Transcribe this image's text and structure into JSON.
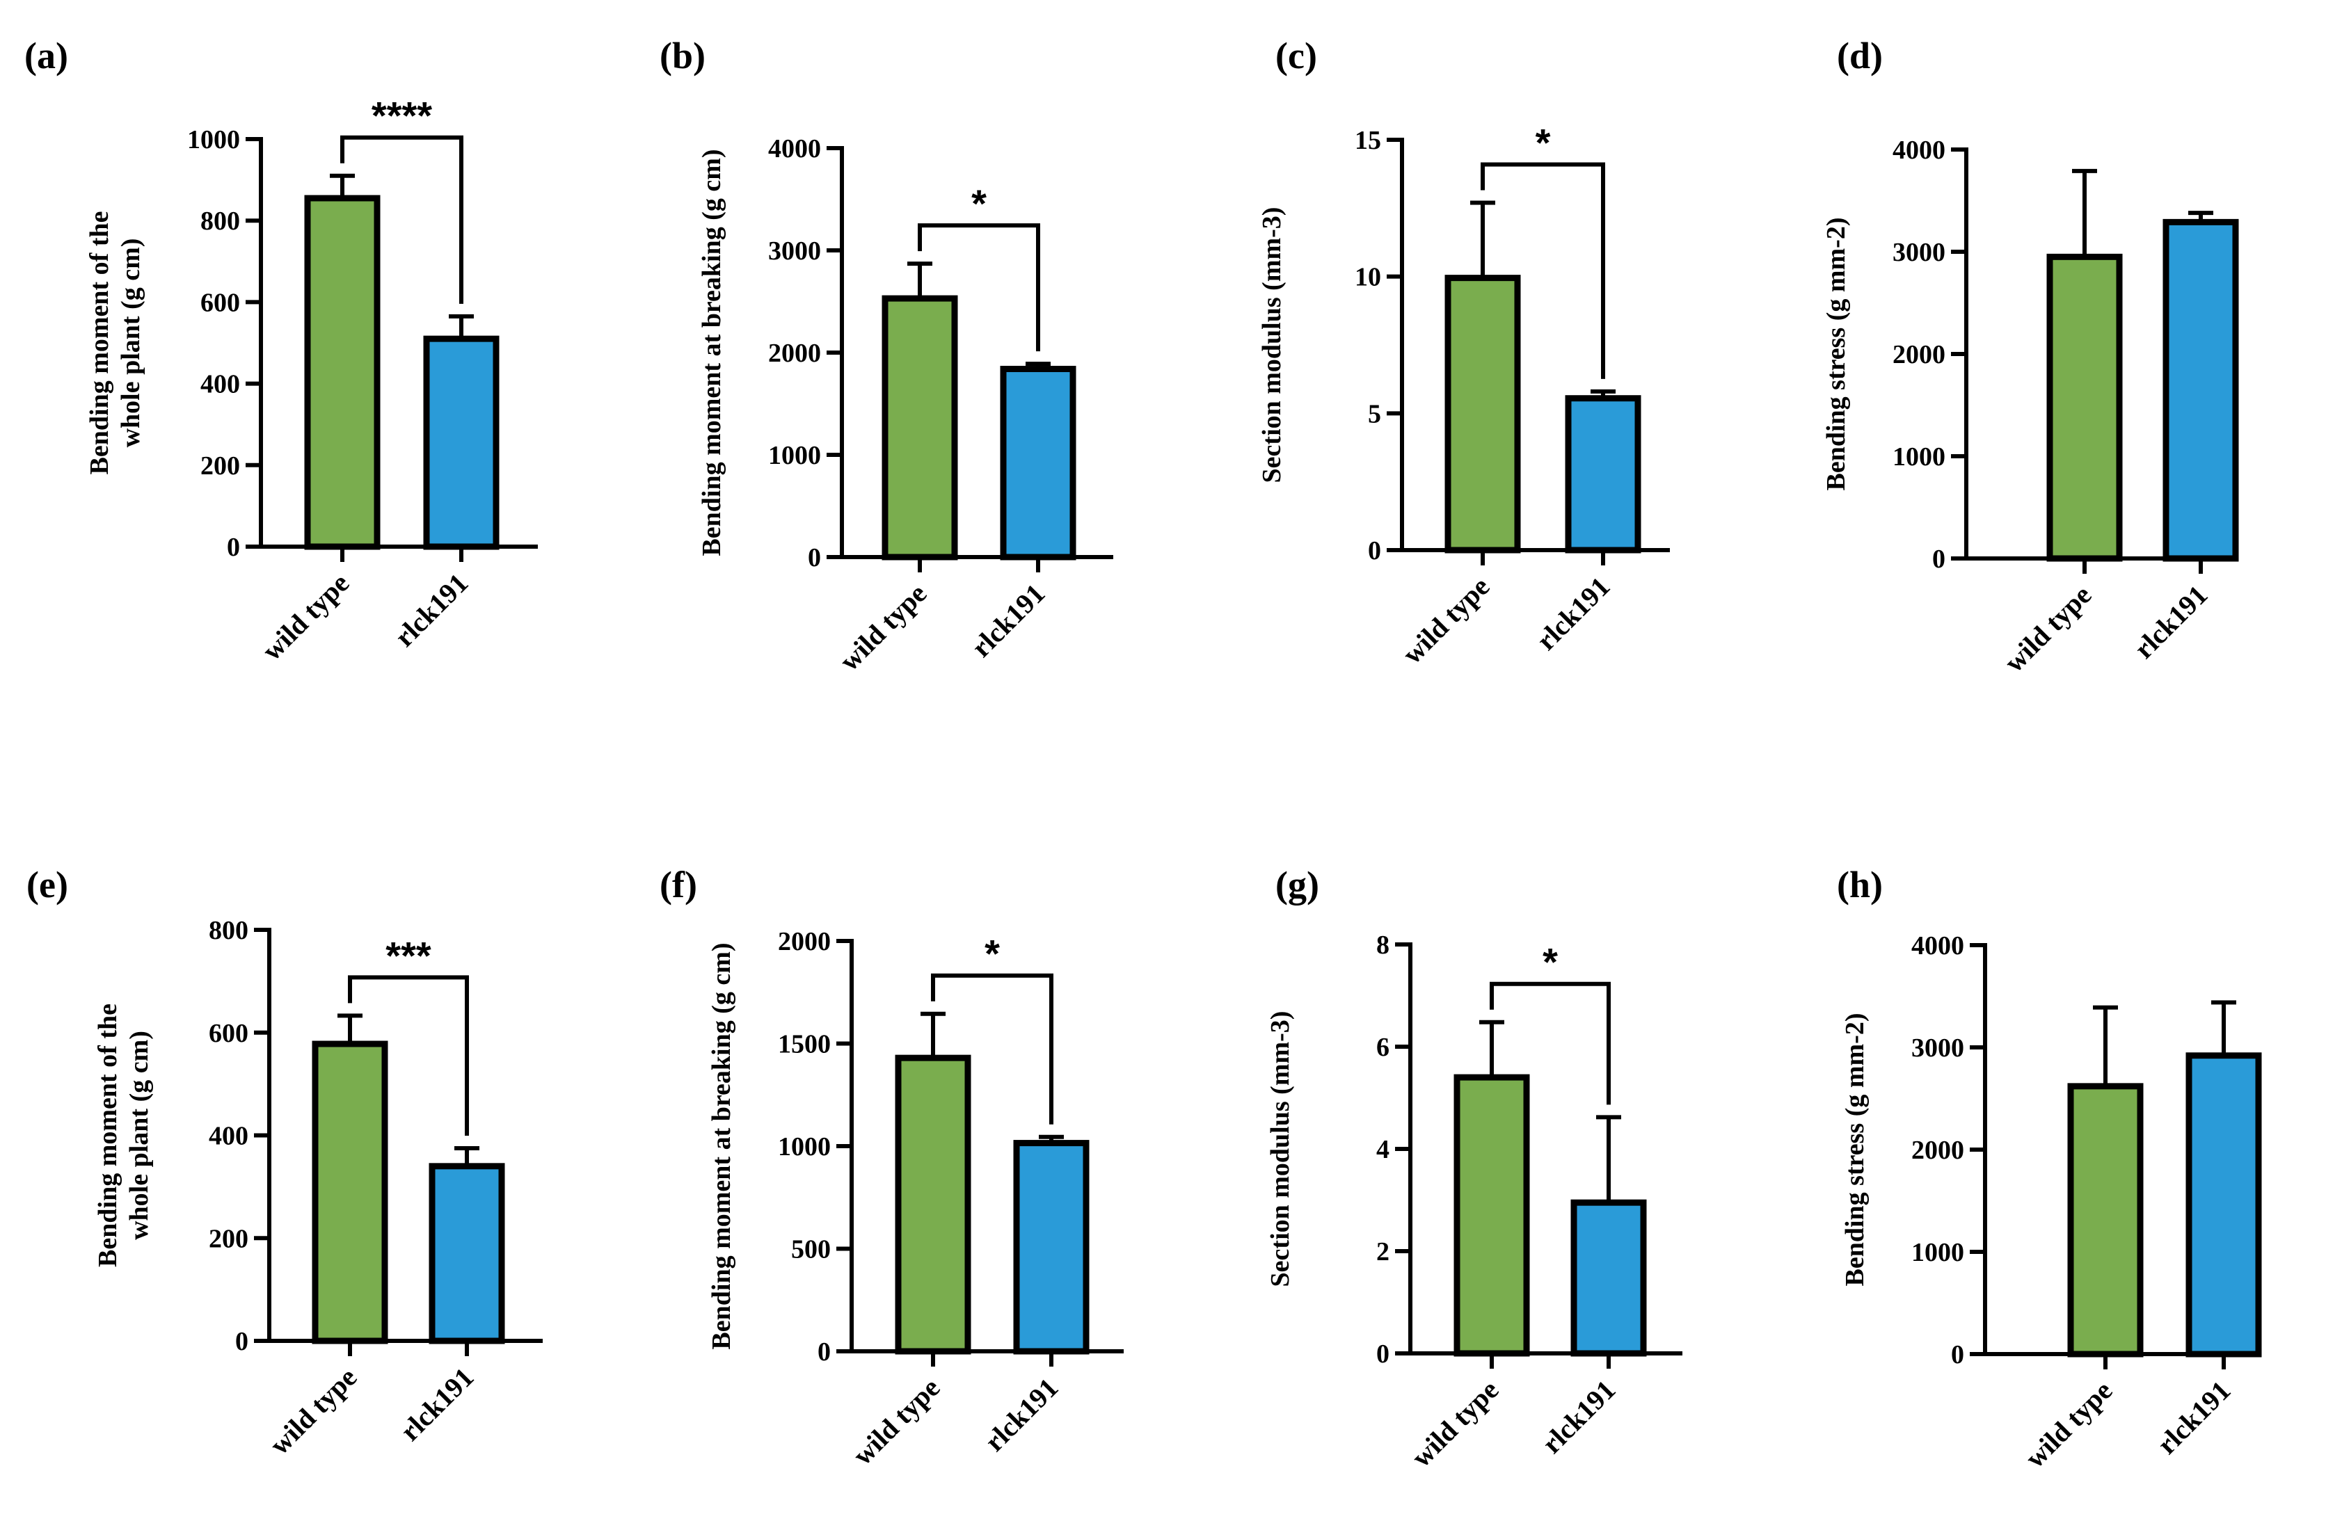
{
  "colors": {
    "wild_type": "#7aad4e",
    "rlck191": "#2a9bd8",
    "axis": "#000000"
  },
  "chart_data": [
    {
      "type": "bar",
      "panel": "(a)",
      "ylabel": [
        "Bending moment of the",
        "whole plant (g cm)"
      ],
      "categories": [
        "wild type",
        "rlck191"
      ],
      "values": [
        855,
        510
      ],
      "errors": [
        55,
        55
      ],
      "ylim": [
        0,
        1000
      ],
      "yticks": [
        0,
        200,
        400,
        600,
        800,
        1000
      ],
      "yticklabels": [
        "0",
        "200",
        "400",
        "600",
        "800",
        "1000"
      ],
      "significance": "****"
    },
    {
      "type": "bar",
      "panel": "(b)",
      "ylabel": [
        "Bending moment at breaking (g cm)"
      ],
      "categories": [
        "wild type",
        "rlck191"
      ],
      "values": [
        2530,
        1840
      ],
      "errors": [
        340,
        50
      ],
      "ylim": [
        0,
        4000
      ],
      "yticks": [
        0,
        1000,
        2000,
        3000,
        4000
      ],
      "yticklabels": [
        "0",
        "1000",
        "2000",
        "3000",
        "4000"
      ],
      "significance": "*"
    },
    {
      "type": "bar",
      "panel": "(c)",
      "ylabel": [
        "Section modulus (mm-3)"
      ],
      "categories": [
        "wild type",
        "rlck191"
      ],
      "values": [
        9.95,
        5.55
      ],
      "errors": [
        2.75,
        0.25
      ],
      "ylim": [
        0,
        15
      ],
      "yticks": [
        0,
        5,
        10,
        15
      ],
      "yticklabels": [
        "0",
        "5",
        "10",
        "15"
      ],
      "significance": "*"
    },
    {
      "type": "bar",
      "panel": "(d)",
      "ylabel": [
        "Bending stress (g mm-2)"
      ],
      "categories": [
        "wild type",
        "rlck191"
      ],
      "values": [
        2950,
        3290
      ],
      "errors": [
        840,
        90
      ],
      "ylim": [
        0,
        4000
      ],
      "yticks": [
        0,
        1000,
        2000,
        3000,
        4000
      ],
      "yticklabels": [
        "0",
        "1000",
        "2000",
        "3000",
        "4000"
      ],
      "significance": ""
    },
    {
      "type": "bar",
      "panel": "(e)",
      "ylabel": [
        "Bending moment of the",
        "whole plant (g cm)"
      ],
      "categories": [
        "wild type",
        "rlck191"
      ],
      "values": [
        578,
        340
      ],
      "errors": [
        55,
        35
      ],
      "ylim": [
        0,
        800
      ],
      "yticks": [
        0,
        200,
        400,
        600,
        800
      ],
      "yticklabels": [
        "0",
        "200",
        "400",
        "600",
        "800"
      ],
      "significance": "***"
    },
    {
      "type": "bar",
      "panel": "(f)",
      "ylabel": [
        "Bending moment at breaking (g cm)"
      ],
      "categories": [
        "wild type",
        "rlck191"
      ],
      "values": [
        1430,
        1015
      ],
      "errors": [
        215,
        30
      ],
      "ylim": [
        0,
        2000
      ],
      "yticks": [
        0,
        500,
        1000,
        1500,
        2000
      ],
      "yticklabels": [
        "0",
        "500",
        "1000",
        "1500",
        "2000"
      ],
      "significance": "*"
    },
    {
      "type": "bar",
      "panel": "(g)",
      "ylabel": [
        "Section modulus (mm-3)"
      ],
      "categories": [
        "wild type",
        "rlck191"
      ],
      "values": [
        5.4,
        2.95
      ],
      "errors": [
        1.08,
        1.67
      ],
      "ylim": [
        0,
        8
      ],
      "yticks": [
        0,
        2,
        4,
        6,
        8
      ],
      "yticklabels": [
        "0",
        "2",
        "4",
        "6",
        "8"
      ],
      "significance": "*"
    },
    {
      "type": "bar",
      "panel": "(h)",
      "ylabel": [
        "Bending stress (g mm-2)"
      ],
      "categories": [
        "wild type",
        "rlck191"
      ],
      "values": [
        2620,
        2920
      ],
      "errors": [
        770,
        520
      ],
      "ylim": [
        0,
        4000
      ],
      "yticks": [
        0,
        1000,
        2000,
        3000,
        4000
      ],
      "yticklabels": [
        "0",
        "1000",
        "2000",
        "3000",
        "4000"
      ],
      "significance": ""
    }
  ]
}
